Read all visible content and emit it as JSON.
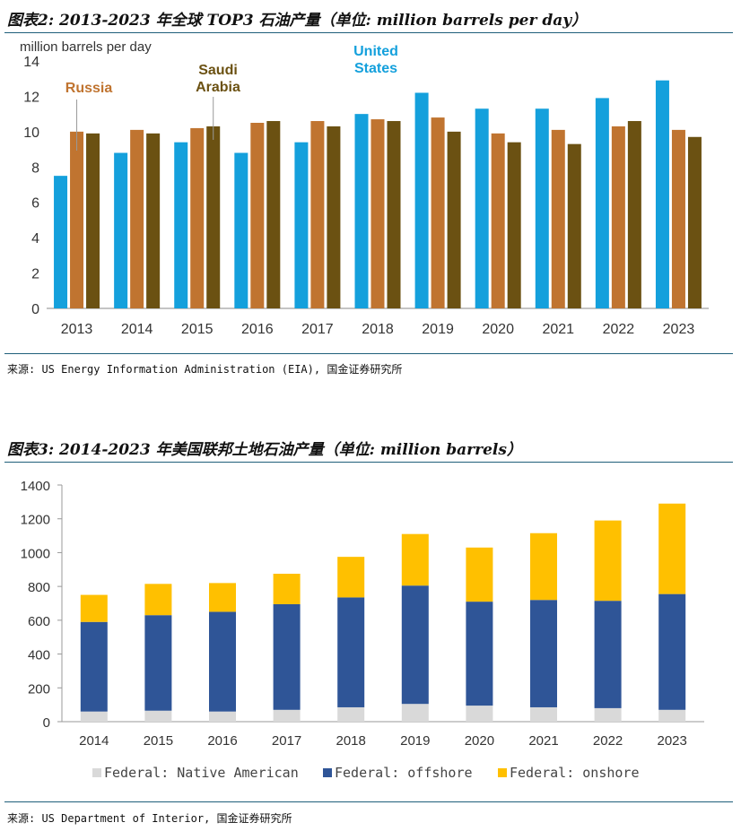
{
  "figures": [
    {
      "title": "图表2: 2013-2023 年全球 TOP3 石油产量（单位: million barrels per day）",
      "source": "来源: US Energy Information Administration (EIA), 国金证券研究所"
    },
    {
      "title": "图表3: 2014-2023 年美国联邦土地石油产量（单位: million barrels）",
      "source": "来源: US Department of Interior, 国金证券研究所"
    }
  ],
  "chart_data": [
    {
      "type": "bar",
      "title": "",
      "ylabel": "million barrels per day",
      "xlabel": "",
      "ylim": [
        0,
        14
      ],
      "yticks": [
        "0",
        "2",
        "4",
        "6",
        "8",
        "10",
        "12",
        "14"
      ],
      "categories": [
        "2013",
        "2014",
        "2015",
        "2016",
        "2017",
        "2018",
        "2019",
        "2020",
        "2021",
        "2022",
        "2023"
      ],
      "series": [
        {
          "name": "United States",
          "color": "#14A0DC",
          "values": [
            7.5,
            8.8,
            9.4,
            8.8,
            9.4,
            11.0,
            12.2,
            11.3,
            11.3,
            11.9,
            12.9
          ]
        },
        {
          "name": "Russia",
          "color": "#C07430",
          "values": [
            10.0,
            10.1,
            10.2,
            10.5,
            10.6,
            10.7,
            10.8,
            9.9,
            10.1,
            10.3,
            10.1
          ]
        },
        {
          "name": "Saudi Arabia",
          "color": "#6B5112",
          "values": [
            9.9,
            9.9,
            10.3,
            10.6,
            10.3,
            10.6,
            10.0,
            9.4,
            9.3,
            10.6,
            9.7
          ]
        }
      ],
      "annotations": [
        {
          "lines": [
            "Russia"
          ],
          "color": "#C07430"
        },
        {
          "lines": [
            "Saudi",
            "Arabia"
          ],
          "color": "#6B5112"
        },
        {
          "lines": [
            "United",
            "States"
          ],
          "color": "#14A0DC"
        }
      ]
    },
    {
      "type": "bar",
      "stacked": true,
      "title": "",
      "xlabel": "",
      "ylabel": "",
      "ylim": [
        0,
        1400
      ],
      "yticks": [
        "0",
        "200",
        "400",
        "600",
        "800",
        "1000",
        "1200",
        "1400"
      ],
      "categories": [
        "2014",
        "2015",
        "2016",
        "2017",
        "2018",
        "2019",
        "2020",
        "2021",
        "2022",
        "2023"
      ],
      "series": [
        {
          "name": "Federal: Native American",
          "color": "#D9D9D9",
          "values": [
            60,
            65,
            60,
            70,
            85,
            105,
            95,
            85,
            80,
            70
          ]
        },
        {
          "name": "Federal: offshore",
          "color": "#2F5597",
          "values": [
            530,
            565,
            590,
            625,
            650,
            700,
            615,
            635,
            635,
            685
          ]
        },
        {
          "name": "Federal: onshore",
          "color": "#FFC000",
          "values": [
            160,
            185,
            170,
            180,
            240,
            305,
            320,
            395,
            475,
            535
          ]
        }
      ],
      "legend": "bottom"
    }
  ]
}
